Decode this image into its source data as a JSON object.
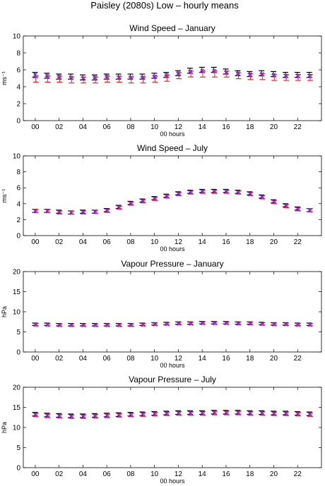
{
  "figure_title": "Paisley (2080s) Low – hourly means",
  "chart_data": [
    {
      "type": "scatter",
      "title": "Wind Speed – January",
      "xlabel": "00 hours",
      "ylabel": "ms⁻¹",
      "ylim": [
        0,
        10
      ],
      "yticks": [
        "0",
        "2",
        "4",
        "6",
        "8",
        "10"
      ],
      "xticks": [
        "00",
        "02",
        "04",
        "06",
        "08",
        "10",
        "12",
        "14",
        "16",
        "18",
        "20",
        "22"
      ],
      "x": [
        0,
        1,
        2,
        3,
        4,
        5,
        6,
        7,
        8,
        9,
        10,
        11,
        12,
        13,
        14,
        15,
        16,
        17,
        18,
        19,
        20,
        21,
        22,
        23
      ],
      "series": [
        {
          "color": "#000000",
          "values": [
            5.4,
            5.3,
            5.2,
            5.2,
            5.1,
            5.1,
            5.2,
            5.2,
            5.2,
            5.2,
            5.3,
            5.4,
            5.6,
            5.9,
            6.0,
            6.0,
            5.8,
            5.6,
            5.5,
            5.6,
            5.5,
            5.4,
            5.4,
            5.4
          ],
          "err": 0.3
        },
        {
          "color": "#e8261f",
          "values": [
            4.9,
            4.9,
            4.9,
            4.8,
            4.8,
            4.8,
            4.9,
            4.9,
            4.8,
            4.8,
            4.9,
            5.0,
            5.3,
            5.5,
            5.5,
            5.5,
            5.5,
            5.3,
            5.2,
            5.2,
            5.1,
            5.1,
            5.1,
            5.1
          ],
          "err": 0.35
        },
        {
          "color": "#2a2ad6",
          "marker": "x",
          "values": [
            5.4,
            5.3,
            5.2,
            5.1,
            5.0,
            5.1,
            5.2,
            5.1,
            5.1,
            5.1,
            5.2,
            5.4,
            5.6,
            5.8,
            5.9,
            5.9,
            5.7,
            5.6,
            5.5,
            5.5,
            5.4,
            5.3,
            5.3,
            5.3
          ]
        },
        {
          "color": "#cc22cc",
          "marker": "x",
          "values": [
            5.2,
            5.2,
            5.1,
            5.0,
            5.0,
            5.0,
            5.1,
            5.1,
            5.1,
            5.1,
            5.2,
            5.3,
            5.5,
            5.7,
            5.8,
            5.8,
            5.7,
            5.5,
            5.4,
            5.4,
            5.3,
            5.2,
            5.2,
            5.2
          ]
        }
      ]
    },
    {
      "type": "scatter",
      "title": "Wind Speed – July",
      "xlabel": "00 hours",
      "ylabel": "ms⁻¹",
      "ylim": [
        0,
        10
      ],
      "yticks": [
        "0",
        "2",
        "4",
        "6",
        "8",
        "10"
      ],
      "xticks": [
        "00",
        "02",
        "04",
        "06",
        "08",
        "10",
        "12",
        "14",
        "16",
        "18",
        "20",
        "22"
      ],
      "x": [
        0,
        1,
        2,
        3,
        4,
        5,
        6,
        7,
        8,
        9,
        10,
        11,
        12,
        13,
        14,
        15,
        16,
        17,
        18,
        19,
        20,
        21,
        22,
        23
      ],
      "series": [
        {
          "color": "#000000",
          "values": [
            3.1,
            3.1,
            3.0,
            2.9,
            3.0,
            3.0,
            3.2,
            3.6,
            4.1,
            4.4,
            4.7,
            5.0,
            5.3,
            5.5,
            5.6,
            5.6,
            5.6,
            5.5,
            5.3,
            4.9,
            4.3,
            3.8,
            3.4,
            3.2
          ],
          "err": 0.2
        },
        {
          "color": "#e8261f",
          "values": [
            3.1,
            3.1,
            2.9,
            2.9,
            2.9,
            3.0,
            3.1,
            3.5,
            4.0,
            4.3,
            4.6,
            4.9,
            5.2,
            5.4,
            5.5,
            5.5,
            5.5,
            5.4,
            5.2,
            4.8,
            4.2,
            3.7,
            3.3,
            3.2
          ],
          "err": 0.2
        },
        {
          "color": "#2a2ad6",
          "marker": "x",
          "values": [
            3.1,
            3.1,
            3.0,
            2.9,
            3.0,
            3.0,
            3.2,
            3.6,
            4.1,
            4.4,
            4.7,
            5.0,
            5.3,
            5.5,
            5.6,
            5.6,
            5.6,
            5.5,
            5.3,
            4.9,
            4.3,
            3.8,
            3.4,
            3.2
          ]
        },
        {
          "color": "#cc22cc",
          "marker": "x",
          "values": [
            3.0,
            3.0,
            2.9,
            2.8,
            2.9,
            2.9,
            3.1,
            3.5,
            4.0,
            4.3,
            4.6,
            4.9,
            5.2,
            5.4,
            5.5,
            5.5,
            5.5,
            5.4,
            5.2,
            4.8,
            4.2,
            3.7,
            3.3,
            3.1
          ]
        }
      ]
    },
    {
      "type": "scatter",
      "title": "Vapour Pressure – January",
      "xlabel": "00 hours",
      "ylabel": "hPa",
      "ylim": [
        0,
        20
      ],
      "yticks": [
        "0",
        "5",
        "10",
        "15",
        "20"
      ],
      "xticks": [
        "00",
        "02",
        "04",
        "06",
        "08",
        "10",
        "12",
        "14",
        "16",
        "18",
        "20",
        "22"
      ],
      "x": [
        0,
        1,
        2,
        3,
        4,
        5,
        6,
        7,
        8,
        9,
        10,
        11,
        12,
        13,
        14,
        15,
        16,
        17,
        18,
        19,
        20,
        21,
        22,
        23
      ],
      "series": [
        {
          "color": "#000000",
          "values": [
            6.9,
            6.9,
            6.8,
            6.8,
            6.8,
            6.8,
            6.8,
            6.8,
            6.8,
            6.9,
            7.0,
            7.1,
            7.2,
            7.2,
            7.3,
            7.3,
            7.3,
            7.2,
            7.2,
            7.1,
            7.0,
            7.0,
            6.9,
            6.9
          ],
          "err": 0.3
        },
        {
          "color": "#e8261f",
          "values": [
            6.8,
            6.8,
            6.7,
            6.7,
            6.7,
            6.7,
            6.7,
            6.7,
            6.7,
            6.8,
            6.9,
            7.0,
            7.1,
            7.1,
            7.2,
            7.2,
            7.2,
            7.1,
            7.1,
            7.0,
            6.9,
            6.9,
            6.8,
            6.8
          ],
          "err": 0.3
        },
        {
          "color": "#2a2ad6",
          "marker": "x",
          "values": [
            6.8,
            6.8,
            6.7,
            6.7,
            6.7,
            6.7,
            6.7,
            6.7,
            6.7,
            6.8,
            6.9,
            7.0,
            7.1,
            7.1,
            7.2,
            7.2,
            7.2,
            7.1,
            7.1,
            7.0,
            6.9,
            6.9,
            6.8,
            6.8
          ]
        },
        {
          "color": "#cc22cc",
          "marker": "x",
          "values": [
            6.7,
            6.7,
            6.6,
            6.6,
            6.6,
            6.6,
            6.6,
            6.6,
            6.6,
            6.7,
            6.8,
            6.9,
            7.0,
            7.0,
            7.1,
            7.1,
            7.1,
            7.0,
            7.0,
            6.9,
            6.8,
            6.8,
            6.7,
            6.7
          ]
        }
      ]
    },
    {
      "type": "scatter",
      "title": "Vapour Pressure – July",
      "xlabel": "00 hours",
      "ylabel": "hPa",
      "ylim": [
        0,
        20
      ],
      "yticks": [
        "0",
        "5",
        "10",
        "15",
        "20"
      ],
      "xticks": [
        "00",
        "02",
        "04",
        "06",
        "08",
        "10",
        "12",
        "14",
        "16",
        "18",
        "20",
        "22"
      ],
      "x": [
        0,
        1,
        2,
        3,
        4,
        5,
        6,
        7,
        8,
        9,
        10,
        11,
        12,
        13,
        14,
        15,
        16,
        17,
        18,
        19,
        20,
        21,
        22,
        23
      ],
      "series": [
        {
          "color": "#000000",
          "values": [
            13.3,
            13.1,
            13.0,
            12.9,
            12.9,
            13.0,
            13.1,
            13.2,
            13.3,
            13.4,
            13.5,
            13.6,
            13.7,
            13.7,
            13.7,
            13.8,
            13.8,
            13.8,
            13.7,
            13.7,
            13.6,
            13.6,
            13.5,
            13.4
          ],
          "err": 0.45
        },
        {
          "color": "#e8261f",
          "values": [
            13.1,
            12.9,
            12.8,
            12.7,
            12.7,
            12.8,
            12.9,
            13.0,
            13.1,
            13.2,
            13.3,
            13.4,
            13.5,
            13.5,
            13.5,
            13.6,
            13.6,
            13.6,
            13.5,
            13.5,
            13.4,
            13.4,
            13.3,
            13.2
          ],
          "err": 0.45
        },
        {
          "color": "#2a2ad6",
          "marker": "x",
          "values": [
            13.2,
            13.0,
            12.9,
            12.8,
            12.8,
            12.9,
            13.0,
            13.1,
            13.2,
            13.3,
            13.4,
            13.5,
            13.6,
            13.6,
            13.6,
            13.7,
            13.7,
            13.7,
            13.6,
            13.6,
            13.5,
            13.5,
            13.4,
            13.3
          ]
        },
        {
          "color": "#cc22cc",
          "marker": "x",
          "values": [
            13.0,
            12.8,
            12.7,
            12.6,
            12.6,
            12.7,
            12.8,
            12.9,
            13.0,
            13.1,
            13.2,
            13.3,
            13.4,
            13.4,
            13.4,
            13.5,
            13.5,
            13.5,
            13.4,
            13.4,
            13.3,
            13.3,
            13.2,
            13.1
          ]
        }
      ]
    }
  ]
}
